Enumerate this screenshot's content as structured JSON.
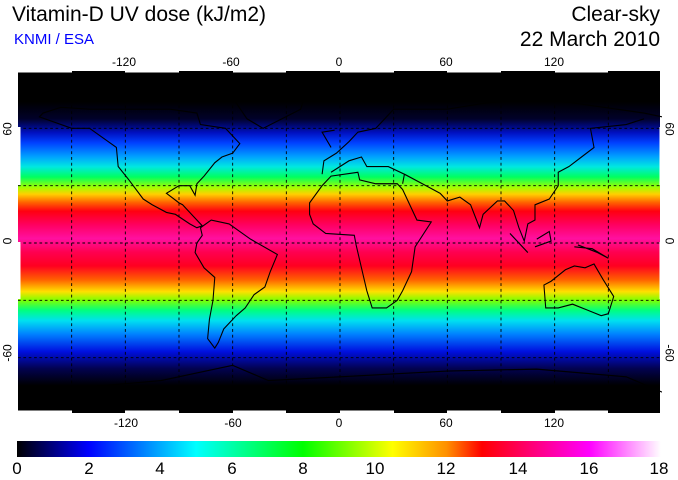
{
  "header": {
    "title": "Vitamin-D UV dose (kJ/m2)",
    "organization": "KNMI / ESA",
    "condition": "Clear-sky",
    "date": "22 March 2010"
  },
  "map": {
    "longitude_ticks": [
      "-120",
      "-60",
      "0",
      "60",
      "120"
    ],
    "latitude_ticks": [
      "60",
      "0",
      "-60"
    ],
    "projection": "plate carree",
    "gridline_spacing_degrees": 30
  },
  "colorbar": {
    "labels": [
      "0",
      "2",
      "4",
      "6",
      "8",
      "10",
      "12",
      "14",
      "16",
      "18"
    ],
    "min": 0,
    "max": 18,
    "colors": [
      "#000000",
      "#0000ff",
      "#00ffff",
      "#00ff00",
      "#ffff00",
      "#ff9000",
      "#ff0000",
      "#ff00ff",
      "#ffffff"
    ]
  }
}
